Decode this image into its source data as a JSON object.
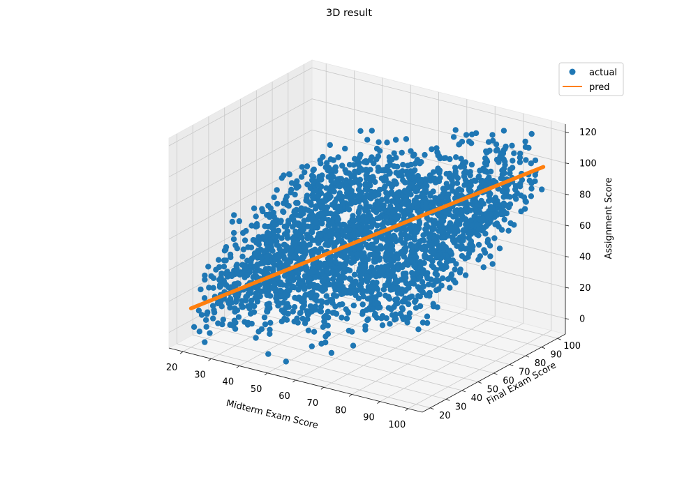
{
  "chart_data": {
    "type": "scatter",
    "projection": "3d",
    "title": "3D result",
    "xlabel": "Midterm Exam Score",
    "ylabel": "Final Exam Score",
    "zlabel": "Assignment Score",
    "xlim": [
      15,
      105
    ],
    "ylim": [
      15,
      105
    ],
    "zlim": [
      -10,
      125
    ],
    "xticks": [
      "20",
      "30",
      "40",
      "50",
      "60",
      "70",
      "80",
      "90",
      "100"
    ],
    "yticks": [
      "20",
      "30",
      "40",
      "50",
      "60",
      "70",
      "80",
      "90",
      "100"
    ],
    "zticks": [
      "0",
      "20",
      "40",
      "60",
      "80",
      "100",
      "120"
    ],
    "grid": true,
    "legend": "top-right",
    "series": [
      {
        "name": "actual",
        "kind": "scatter",
        "color": "#1f77b4",
        "marker": "circle",
        "x_range": [
          20,
          100
        ],
        "y_range": [
          20,
          100
        ],
        "z_range": [
          -5,
          125
        ],
        "relation": "assignment increases with midterm and final scores"
      },
      {
        "name": "pred",
        "kind": "line",
        "color": "#ff7f0e",
        "points": [
          {
            "x": 20,
            "y": 20,
            "z": 15
          },
          {
            "x": 100,
            "y": 100,
            "z": 98
          }
        ]
      }
    ]
  }
}
